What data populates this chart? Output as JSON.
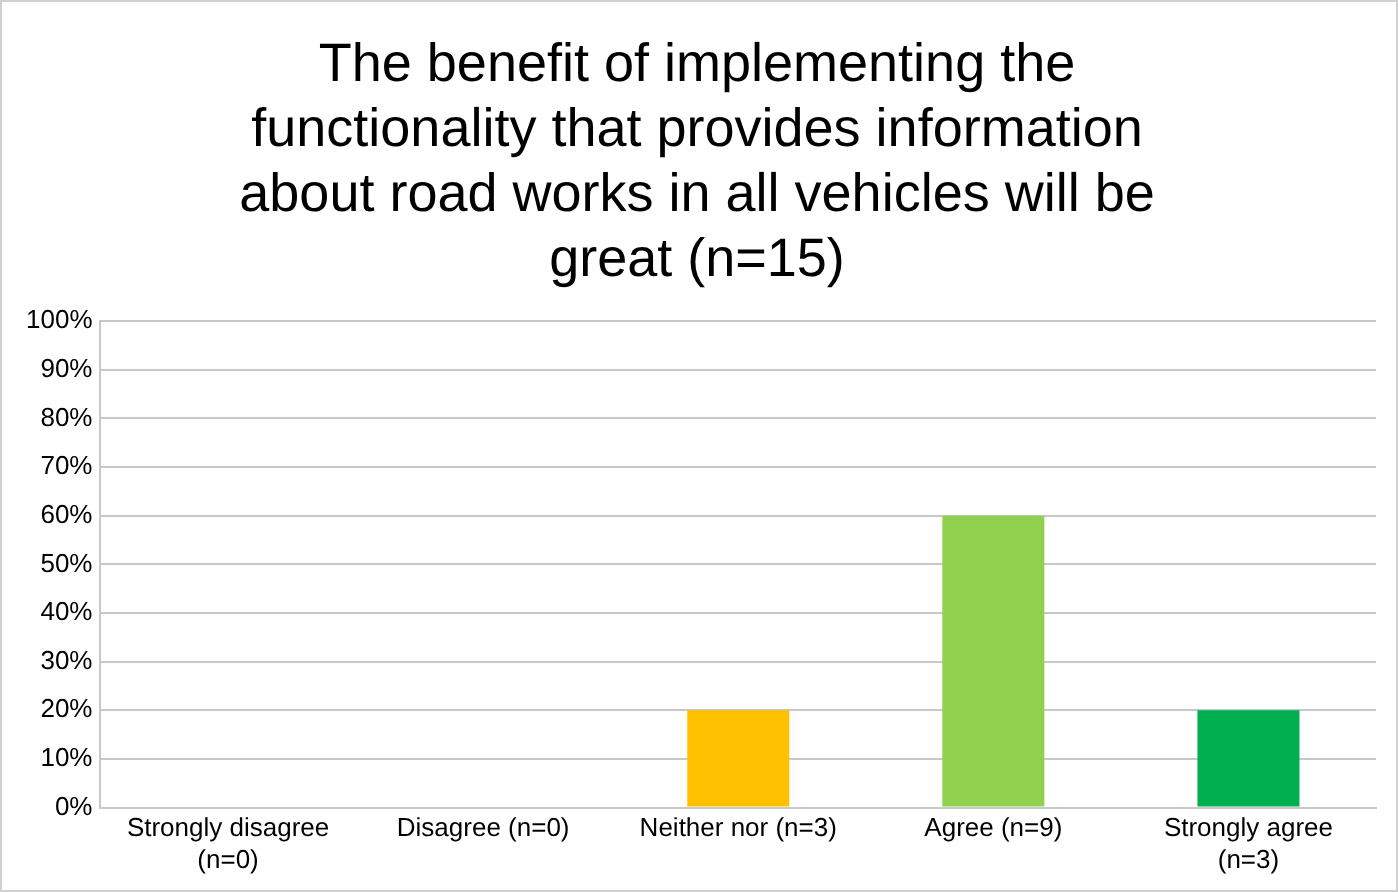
{
  "chart_data": {
    "type": "bar",
    "title": "The benefit of implementing the functionality that provides information about road works in all vehicles will be great (n=15)",
    "categories": [
      "Strongly disagree (n=0)",
      "Disagree (n=0)",
      "Neither nor (n=3)",
      "Agree (n=9)",
      "Strongly agree (n=3)"
    ],
    "values": [
      0,
      0,
      20,
      60,
      20
    ],
    "colors": [
      "#c00000",
      "#ff6600",
      "#ffc000",
      "#92d050",
      "#00b050"
    ],
    "ylim": [
      0,
      100
    ],
    "yticks": [
      {
        "value": 0,
        "label": "0%"
      },
      {
        "value": 10,
        "label": "10%"
      },
      {
        "value": 20,
        "label": "20%"
      },
      {
        "value": 30,
        "label": "30%"
      },
      {
        "value": 40,
        "label": "40%"
      },
      {
        "value": 50,
        "label": "50%"
      },
      {
        "value": 60,
        "label": "60%"
      },
      {
        "value": 70,
        "label": "70%"
      },
      {
        "value": 80,
        "label": "80%"
      },
      {
        "value": 90,
        "label": "90%"
      },
      {
        "value": 100,
        "label": "100%"
      }
    ],
    "grid": "y",
    "legend": false
  }
}
